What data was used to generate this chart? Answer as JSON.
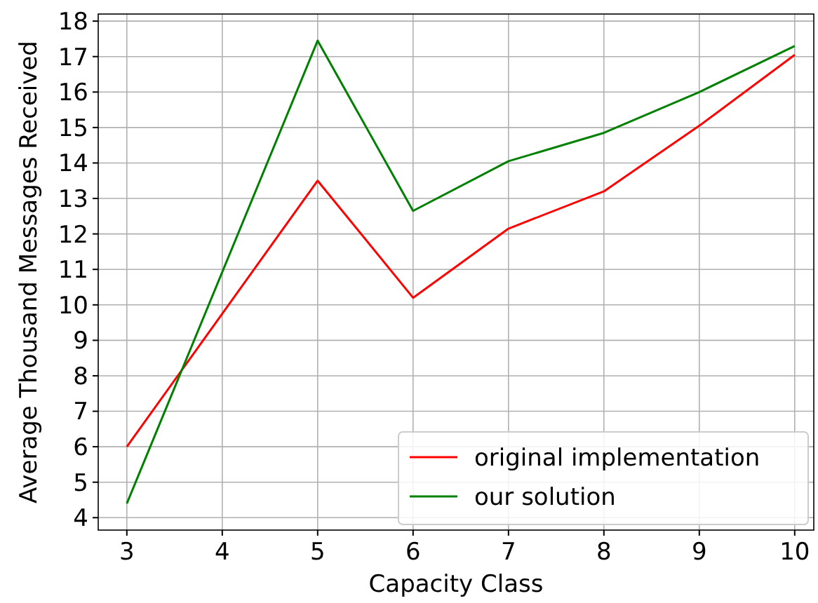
{
  "chart_data": {
    "type": "line",
    "xlabel": "Capacity Class",
    "ylabel": "Average Thousand Messages Received",
    "x": [
      3,
      5,
      6,
      7,
      8,
      9,
      10
    ],
    "xlim": [
      2.7,
      10.2
    ],
    "xticks": [
      3,
      4,
      5,
      6,
      7,
      8,
      9,
      10
    ],
    "ylim": [
      3.65,
      18.2
    ],
    "yticks": [
      4,
      5,
      6,
      7,
      8,
      9,
      10,
      11,
      12,
      13,
      14,
      15,
      16,
      17,
      18
    ],
    "grid": true,
    "legend": "bottom right",
    "marker": "none",
    "line_style": "solid",
    "series": [
      {
        "name": "original implementation",
        "color": "#ff0000",
        "values": [
          6.0,
          13.5,
          10.2,
          12.15,
          13.2,
          15.05,
          17.05
        ]
      },
      {
        "name": "our solution",
        "color": "#008000",
        "values": [
          4.4,
          17.45,
          12.65,
          14.05,
          14.85,
          16.0,
          17.3
        ]
      }
    ]
  }
}
